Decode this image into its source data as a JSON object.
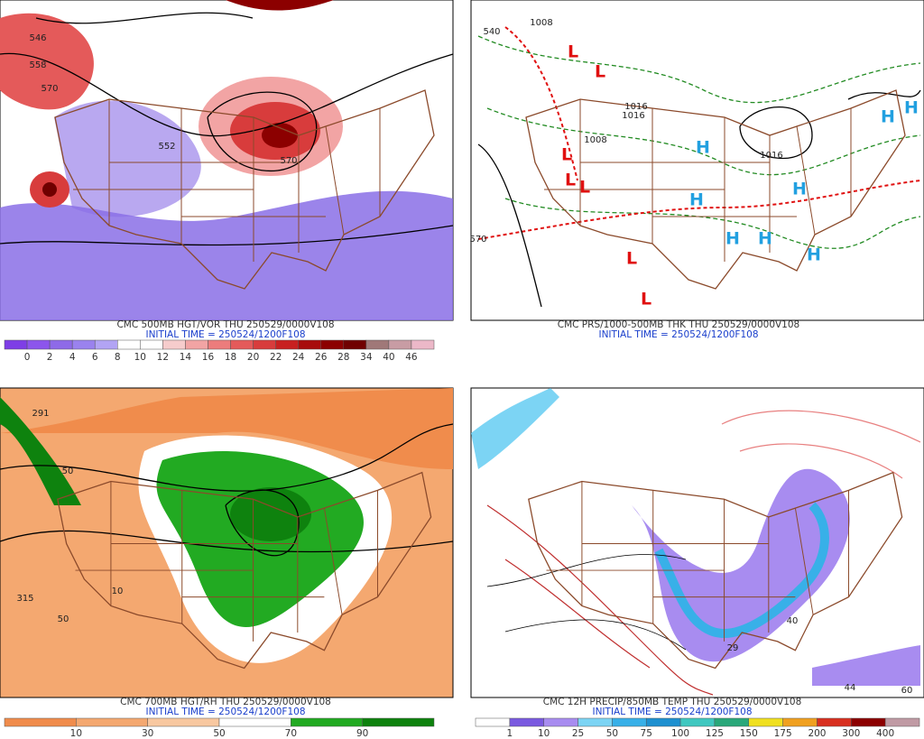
{
  "panels": [
    {
      "title": "CMC 500MB HGT/VOR THU 250529/0000V108",
      "subtitle": "INITIAL TIME = 250524/1200F108",
      "contour_labels": [
        "546",
        "558",
        "570",
        "552",
        "570"
      ],
      "colorbar": {
        "labels": [
          "0",
          "2",
          "4",
          "6",
          "8",
          "10",
          "12",
          "14",
          "16",
          "18",
          "20",
          "22",
          "24",
          "26",
          "28",
          "34",
          "40",
          "46"
        ],
        "colors": [
          "#7e3ee6",
          "#8c55ec",
          "#8e6ae8",
          "#9a82ee",
          "#b2a4f4",
          "#ffffff",
          "#ffffff",
          "#f6cccc",
          "#f2a4a4",
          "#ec7c7c",
          "#e45a5a",
          "#d83c3c",
          "#c82020",
          "#a80c0c",
          "#8c0000",
          "#700000",
          "#a07878",
          "#c89ca4",
          "#ecb8c8"
        ]
      }
    },
    {
      "title": "CMC PRS/1000-500MB THK THU 250529/0000V108",
      "subtitle": "INITIAL TIME = 250524/1200F108",
      "contour_labels": [
        "1008",
        "1016",
        "1016",
        "1008",
        "1016",
        "540",
        "570"
      ],
      "markers": [
        "L",
        "L",
        "L",
        "L",
        "L",
        "L",
        "L",
        "H",
        "H",
        "H",
        "H",
        "H",
        "H",
        "H",
        "H"
      ]
    },
    {
      "title": "CMC 700MB HGT/RH THU 250529/0000V108",
      "subtitle": "INITIAL TIME = 250524/1200F108",
      "contour_labels": [
        "291",
        "315",
        "50",
        "10",
        "50"
      ],
      "colorbar": {
        "labels": [
          "10",
          "30",
          "50",
          "70",
          "90"
        ],
        "colors": [
          "#f08c4c",
          "#f4a870",
          "#f8c8a0",
          "#ffffff",
          "#22aa22",
          "#0e820e"
        ]
      }
    },
    {
      "title": "CMC 12H PRECIP/850MB TEMP THU 250529/0000V108",
      "subtitle": "INITIAL TIME = 250524/1200F108",
      "contour_labels": [
        "29",
        "40",
        "44",
        "60"
      ],
      "colorbar": {
        "labels": [
          "1",
          "10",
          "25",
          "50",
          "75",
          "100",
          "125",
          "150",
          "175",
          "200",
          "300",
          "400"
        ],
        "colors": [
          "#ffffff",
          "#7a5ae0",
          "#a88cf0",
          "#7cd4f4",
          "#38b0e8",
          "#1e90d0",
          "#40c8c0",
          "#2aa87a",
          "#f0e020",
          "#f0a020",
          "#d83020",
          "#8c0000",
          "#c09aa4"
        ]
      }
    }
  ]
}
